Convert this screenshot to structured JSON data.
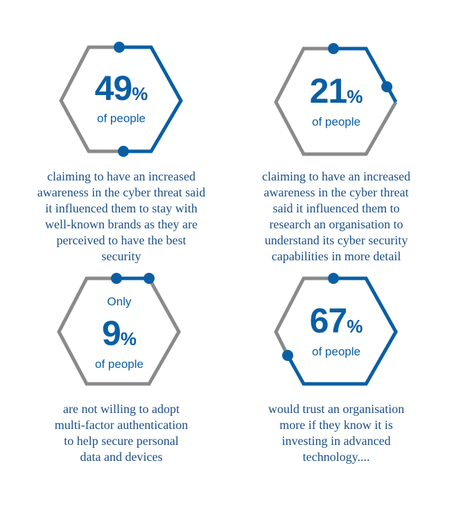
{
  "colors": {
    "hex_gray": "#8a8a8a",
    "hex_blue": "#0a5fa3",
    "text_blue": "#1b4f86"
  },
  "stats": [
    {
      "value": "49",
      "unit": "%",
      "subtitle": "of people",
      "caption_lines": [
        "claiming to have an increased",
        "awareness in the cyber threat said",
        "it influenced them to stay with",
        "well-known brands as they are",
        "perceived to have the best",
        "security"
      ]
    },
    {
      "value": "21",
      "unit": "%",
      "subtitle": "of people",
      "caption_lines": [
        "claiming to have an increased",
        "awareness in the cyber threat",
        "said it influenced them to",
        "research an organisation to",
        "understand its cyber security",
        "capabilities in more detail"
      ]
    },
    {
      "prefix": "Only",
      "value": "9",
      "unit": "%",
      "subtitle": "of people",
      "caption_lines": [
        "are not willing to adopt",
        "multi-factor authentication",
        "to help secure personal",
        "data and devices"
      ]
    },
    {
      "value": "67",
      "unit": "%",
      "subtitle": "of people",
      "caption_lines": [
        "would trust an organisation",
        "more if they know it is",
        "investing in advanced",
        "technology...."
      ]
    }
  ]
}
